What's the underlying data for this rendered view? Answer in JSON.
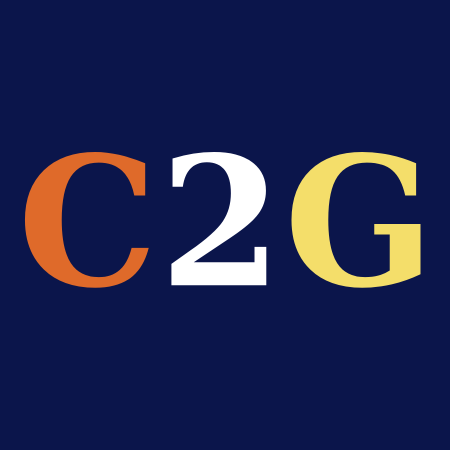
{
  "logo": {
    "letters": [
      {
        "text": "C",
        "color": "#df6a2a"
      },
      {
        "text": "2",
        "color": "#ffffff"
      },
      {
        "text": "G",
        "color": "#f4de6a"
      }
    ]
  },
  "colors": {
    "background": "#0b154b"
  }
}
